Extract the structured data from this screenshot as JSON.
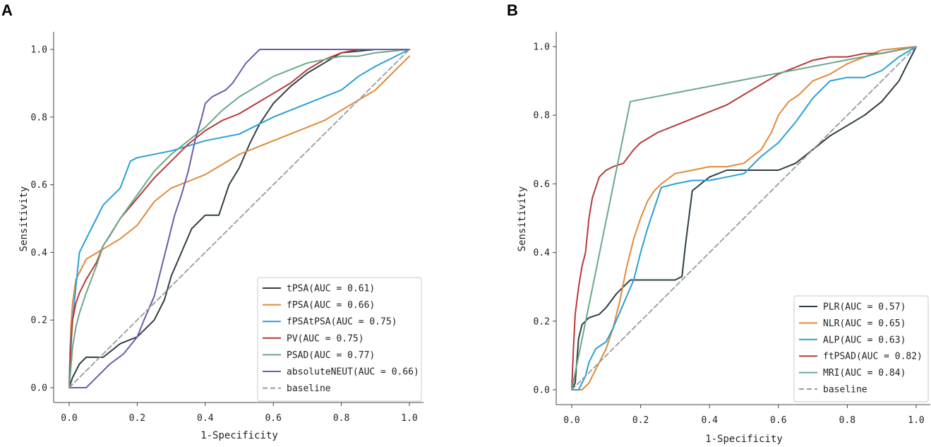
{
  "chart_data": [
    {
      "panel": "A",
      "type": "line",
      "xlabel": "1-Specificity",
      "ylabel": "Sensitivity",
      "xlim": [
        0,
        1
      ],
      "ylim": [
        0,
        1
      ],
      "xticks": [
        "0.0",
        "0.2",
        "0.4",
        "0.6",
        "0.8",
        "1.0"
      ],
      "yticks": [
        "0.0",
        "0.2",
        "0.4",
        "0.6",
        "0.8",
        "1.0"
      ],
      "legend_position": "lower-right",
      "series": [
        {
          "name": "tPSA(AUC = 0.61)",
          "color": "#2f3e46",
          "x": [
            0,
            0.01,
            0.03,
            0.05,
            0.1,
            0.15,
            0.2,
            0.25,
            0.28,
            0.3,
            0.33,
            0.36,
            0.4,
            0.44,
            0.47,
            0.5,
            0.53,
            0.56,
            0.6,
            0.65,
            0.7,
            0.75,
            0.8,
            0.9,
            1.0
          ],
          "y": [
            0,
            0.03,
            0.07,
            0.09,
            0.09,
            0.13,
            0.15,
            0.2,
            0.26,
            0.33,
            0.4,
            0.47,
            0.51,
            0.51,
            0.6,
            0.65,
            0.72,
            0.78,
            0.84,
            0.89,
            0.93,
            0.96,
            0.99,
            1.0,
            1.0
          ]
        },
        {
          "name": "fPSA(AUC = 0.66)",
          "color": "#e08a3a",
          "x": [
            0,
            0.005,
            0.01,
            0.02,
            0.05,
            0.1,
            0.15,
            0.2,
            0.25,
            0.3,
            0.35,
            0.4,
            0.45,
            0.5,
            0.55,
            0.6,
            0.65,
            0.7,
            0.75,
            0.8,
            0.85,
            0.9,
            0.95,
            1.0
          ],
          "y": [
            0,
            0.18,
            0.25,
            0.32,
            0.38,
            0.41,
            0.44,
            0.48,
            0.55,
            0.59,
            0.61,
            0.63,
            0.66,
            0.69,
            0.71,
            0.73,
            0.75,
            0.77,
            0.79,
            0.82,
            0.85,
            0.88,
            0.93,
            0.98
          ]
        },
        {
          "name": "fPSAtPSA(AUC = 0.75)",
          "color": "#2a9fd6",
          "x": [
            0,
            0.003,
            0.01,
            0.02,
            0.03,
            0.05,
            0.08,
            0.1,
            0.15,
            0.18,
            0.2,
            0.3,
            0.4,
            0.5,
            0.6,
            0.7,
            0.8,
            0.85,
            0.9,
            1.0
          ],
          "y": [
            0,
            0.12,
            0.2,
            0.3,
            0.4,
            0.44,
            0.5,
            0.54,
            0.59,
            0.67,
            0.68,
            0.7,
            0.73,
            0.75,
            0.8,
            0.84,
            0.88,
            0.92,
            0.95,
            1.0
          ]
        },
        {
          "name": "PV(AUC = 0.75)",
          "color": "#b53a3a",
          "x": [
            0,
            0.005,
            0.01,
            0.02,
            0.03,
            0.05,
            0.08,
            0.1,
            0.12,
            0.15,
            0.2,
            0.25,
            0.3,
            0.35,
            0.4,
            0.45,
            0.5,
            0.55,
            0.6,
            0.65,
            0.7,
            0.75,
            0.8,
            0.85,
            0.9,
            1.0
          ],
          "y": [
            0,
            0.12,
            0.2,
            0.25,
            0.28,
            0.32,
            0.37,
            0.42,
            0.45,
            0.5,
            0.56,
            0.62,
            0.67,
            0.72,
            0.76,
            0.79,
            0.81,
            0.84,
            0.87,
            0.9,
            0.94,
            0.97,
            0.99,
            1.0,
            1.0,
            1.0
          ]
        },
        {
          "name": "PSAD(AUC = 0.77)",
          "color": "#6aa889",
          "x": [
            0,
            0.005,
            0.01,
            0.02,
            0.03,
            0.05,
            0.08,
            0.1,
            0.15,
            0.2,
            0.25,
            0.3,
            0.35,
            0.4,
            0.45,
            0.5,
            0.55,
            0.6,
            0.65,
            0.7,
            0.75,
            0.8,
            0.85,
            0.9,
            1.0
          ],
          "y": [
            0,
            0.06,
            0.12,
            0.18,
            0.22,
            0.28,
            0.36,
            0.42,
            0.5,
            0.57,
            0.64,
            0.69,
            0.73,
            0.77,
            0.82,
            0.86,
            0.89,
            0.92,
            0.94,
            0.96,
            0.97,
            0.98,
            0.98,
            0.99,
            1.0
          ]
        },
        {
          "name": "absoluteNEUT(AUC = 0.66)",
          "color": "#6d5ba8",
          "x": [
            0,
            0.05,
            0.08,
            0.12,
            0.16,
            0.2,
            0.22,
            0.25,
            0.27,
            0.29,
            0.31,
            0.33,
            0.35,
            0.37,
            0.39,
            0.4,
            0.42,
            0.44,
            0.46,
            0.48,
            0.5,
            0.52,
            0.54,
            0.56,
            0.6,
            0.65,
            0.7,
            1.0
          ],
          "y": [
            0,
            0,
            0.03,
            0.07,
            0.1,
            0.15,
            0.2,
            0.27,
            0.35,
            0.43,
            0.51,
            0.57,
            0.64,
            0.73,
            0.8,
            0.84,
            0.86,
            0.87,
            0.88,
            0.9,
            0.93,
            0.96,
            0.98,
            1.0,
            1.0,
            1.0,
            1.0,
            1.0
          ]
        },
        {
          "name": "baseline",
          "color": "#9a9a9a",
          "dashed": true,
          "x": [
            0,
            1
          ],
          "y": [
            0,
            1
          ]
        }
      ]
    },
    {
      "panel": "B",
      "type": "line",
      "xlabel": "1-Specificity",
      "ylabel": "Sensitivity",
      "xlim": [
        0,
        1
      ],
      "ylim": [
        0,
        1
      ],
      "xticks": [
        "0.0",
        "0.2",
        "0.4",
        "0.6",
        "0.8",
        "1.0"
      ],
      "yticks": [
        "0.0",
        "0.2",
        "0.4",
        "0.6",
        "0.8",
        "1.0"
      ],
      "legend_position": "lower-right",
      "series": [
        {
          "name": "PLR(AUC = 0.57)",
          "color": "#2f3e46",
          "x": [
            0,
            0.01,
            0.02,
            0.03,
            0.05,
            0.08,
            0.1,
            0.13,
            0.15,
            0.17,
            0.2,
            0.25,
            0.3,
            0.32,
            0.33,
            0.35,
            0.4,
            0.45,
            0.5,
            0.55,
            0.6,
            0.65,
            0.7,
            0.75,
            0.8,
            0.85,
            0.9,
            0.95,
            1.0
          ],
          "y": [
            0,
            0.02,
            0.15,
            0.19,
            0.21,
            0.22,
            0.24,
            0.28,
            0.3,
            0.32,
            0.32,
            0.32,
            0.32,
            0.33,
            0.42,
            0.58,
            0.62,
            0.64,
            0.64,
            0.64,
            0.64,
            0.66,
            0.7,
            0.74,
            0.77,
            0.8,
            0.84,
            0.9,
            1.0
          ]
        },
        {
          "name": "NLR(AUC = 0.65)",
          "color": "#e08a3a",
          "x": [
            0,
            0.03,
            0.05,
            0.07,
            0.1,
            0.12,
            0.14,
            0.16,
            0.18,
            0.2,
            0.22,
            0.24,
            0.26,
            0.3,
            0.35,
            0.4,
            0.45,
            0.5,
            0.55,
            0.58,
            0.6,
            0.63,
            0.66,
            0.7,
            0.75,
            0.8,
            0.85,
            0.9,
            1.0
          ],
          "y": [
            0,
            0,
            0.02,
            0.06,
            0.12,
            0.18,
            0.26,
            0.36,
            0.44,
            0.5,
            0.55,
            0.58,
            0.6,
            0.63,
            0.64,
            0.65,
            0.65,
            0.66,
            0.7,
            0.75,
            0.8,
            0.84,
            0.86,
            0.9,
            0.92,
            0.95,
            0.97,
            0.99,
            1.0
          ]
        },
        {
          "name": "ALP(AUC = 0.63)",
          "color": "#2a9fd6",
          "x": [
            0,
            0.02,
            0.04,
            0.05,
            0.07,
            0.1,
            0.12,
            0.15,
            0.18,
            0.2,
            0.22,
            0.24,
            0.26,
            0.3,
            0.35,
            0.4,
            0.45,
            0.5,
            0.55,
            0.6,
            0.65,
            0.7,
            0.75,
            0.8,
            0.85,
            0.9,
            0.95,
            1.0
          ],
          "y": [
            0,
            0,
            0.04,
            0.08,
            0.12,
            0.14,
            0.18,
            0.25,
            0.32,
            0.4,
            0.47,
            0.53,
            0.59,
            0.6,
            0.61,
            0.61,
            0.62,
            0.63,
            0.68,
            0.72,
            0.78,
            0.85,
            0.9,
            0.91,
            0.91,
            0.93,
            0.97,
            1.0
          ]
        },
        {
          "name": "ftPSAD(AUC = 0.82)",
          "color": "#b53a3a",
          "x": [
            0,
            0.005,
            0.01,
            0.02,
            0.03,
            0.04,
            0.05,
            0.06,
            0.08,
            0.1,
            0.12,
            0.15,
            0.18,
            0.2,
            0.25,
            0.3,
            0.35,
            0.4,
            0.45,
            0.5,
            0.55,
            0.6,
            0.65,
            0.7,
            0.75,
            0.8,
            0.85,
            0.9,
            1.0
          ],
          "y": [
            0,
            0.12,
            0.22,
            0.3,
            0.36,
            0.4,
            0.5,
            0.56,
            0.62,
            0.64,
            0.65,
            0.66,
            0.7,
            0.72,
            0.75,
            0.77,
            0.79,
            0.81,
            0.83,
            0.86,
            0.89,
            0.92,
            0.94,
            0.96,
            0.97,
            0.97,
            0.98,
            0.98,
            1.0
          ]
        },
        {
          "name": "MRI(AUC = 0.84)",
          "color": "#6aa889",
          "x": [
            0,
            0.17,
            1.0
          ],
          "y": [
            0,
            0.84,
            1.0
          ]
        },
        {
          "name": "baseline",
          "color": "#9a9a9a",
          "dashed": true,
          "x": [
            0,
            1
          ],
          "y": [
            0,
            1
          ]
        }
      ]
    }
  ]
}
